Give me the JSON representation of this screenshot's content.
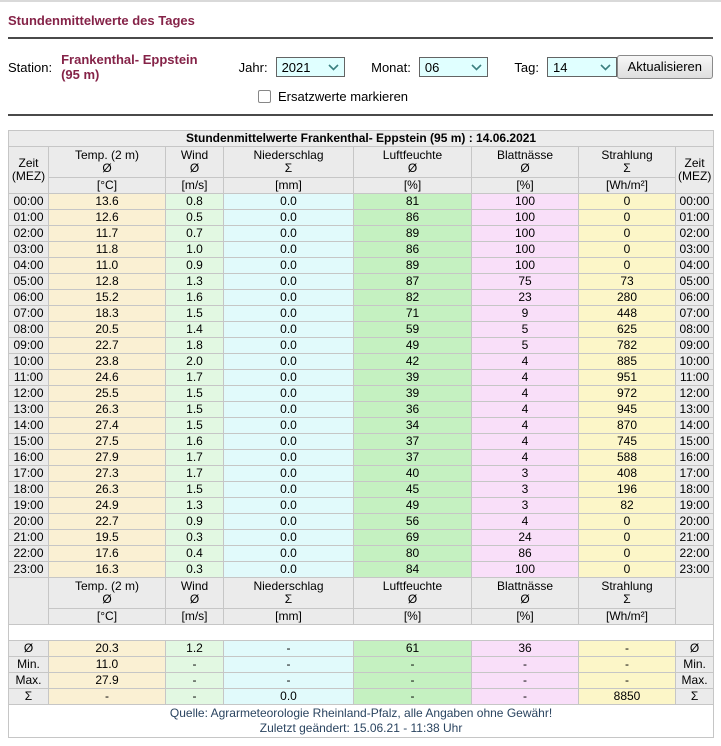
{
  "page": {
    "title": "Stundenmittelwerte des Tages"
  },
  "controls": {
    "station_label": "Station:",
    "station_value": "Frankenthal- Eppstein (95 m)",
    "year_label": "Jahr:",
    "year_value": "2021",
    "month_label": "Monat:",
    "month_value": "06",
    "day_label": "Tag:",
    "day_value": "14",
    "refresh_label": "Aktualisieren",
    "checkbox_label": "Ersatzwerte markieren",
    "checkbox_checked": false
  },
  "table": {
    "caption": "Stundenmittelwerte Frankenthal- Eppstein (95 m) : 14.06.2021",
    "columns": [
      {
        "name": "Zeit",
        "sub": "(MEZ)"
      },
      {
        "name": "Temp. (2 m)",
        "symbol": "Ø",
        "unit": "[°C]"
      },
      {
        "name": "Wind",
        "symbol": "Ø",
        "unit": "[m/s]"
      },
      {
        "name": "Niederschlag",
        "symbol": "Σ",
        "unit": "[mm]"
      },
      {
        "name": "Luftfeuchte",
        "symbol": "Ø",
        "unit": "[%]"
      },
      {
        "name": "Blattnässe",
        "symbol": "Ø",
        "unit": "[%]"
      },
      {
        "name": "Strahlung",
        "symbol": "Σ",
        "unit": "[Wh/m²]"
      },
      {
        "name": "Zeit",
        "sub": "(MEZ)"
      }
    ],
    "rows": [
      [
        "00:00",
        "13.6",
        "0.8",
        "0.0",
        "81",
        "100",
        "0"
      ],
      [
        "01:00",
        "12.6",
        "0.5",
        "0.0",
        "86",
        "100",
        "0"
      ],
      [
        "02:00",
        "11.7",
        "0.7",
        "0.0",
        "89",
        "100",
        "0"
      ],
      [
        "03:00",
        "11.8",
        "1.0",
        "0.0",
        "86",
        "100",
        "0"
      ],
      [
        "04:00",
        "11.0",
        "0.9",
        "0.0",
        "89",
        "100",
        "0"
      ],
      [
        "05:00",
        "12.8",
        "1.3",
        "0.0",
        "87",
        "75",
        "73"
      ],
      [
        "06:00",
        "15.2",
        "1.6",
        "0.0",
        "82",
        "23",
        "280"
      ],
      [
        "07:00",
        "18.3",
        "1.5",
        "0.0",
        "71",
        "9",
        "448"
      ],
      [
        "08:00",
        "20.5",
        "1.4",
        "0.0",
        "59",
        "5",
        "625"
      ],
      [
        "09:00",
        "22.7",
        "1.8",
        "0.0",
        "49",
        "5",
        "782"
      ],
      [
        "10:00",
        "23.8",
        "2.0",
        "0.0",
        "42",
        "4",
        "885"
      ],
      [
        "11:00",
        "24.6",
        "1.7",
        "0.0",
        "39",
        "4",
        "951"
      ],
      [
        "12:00",
        "25.5",
        "1.5",
        "0.0",
        "39",
        "4",
        "972"
      ],
      [
        "13:00",
        "26.3",
        "1.5",
        "0.0",
        "36",
        "4",
        "945"
      ],
      [
        "14:00",
        "27.4",
        "1.5",
        "0.0",
        "34",
        "4",
        "870"
      ],
      [
        "15:00",
        "27.5",
        "1.6",
        "0.0",
        "37",
        "4",
        "745"
      ],
      [
        "16:00",
        "27.9",
        "1.7",
        "0.0",
        "37",
        "4",
        "588"
      ],
      [
        "17:00",
        "27.3",
        "1.7",
        "0.0",
        "40",
        "3",
        "408"
      ],
      [
        "18:00",
        "26.3",
        "1.5",
        "0.0",
        "45",
        "3",
        "196"
      ],
      [
        "19:00",
        "24.9",
        "1.3",
        "0.0",
        "49",
        "3",
        "82"
      ],
      [
        "20:00",
        "22.7",
        "0.9",
        "0.0",
        "56",
        "4",
        "0"
      ],
      [
        "21:00",
        "19.5",
        "0.3",
        "0.0",
        "69",
        "24",
        "0"
      ],
      [
        "22:00",
        "17.6",
        "0.4",
        "0.0",
        "80",
        "86",
        "0"
      ],
      [
        "23:00",
        "16.3",
        "0.3",
        "0.0",
        "84",
        "100",
        "0"
      ]
    ],
    "summary": [
      {
        "label": "Ø",
        "values": [
          "20.3",
          "1.2",
          "-",
          "61",
          "36",
          "-"
        ]
      },
      {
        "label": "Min.",
        "values": [
          "11.0",
          "-",
          "-",
          "-",
          "-",
          "-"
        ]
      },
      {
        "label": "Max.",
        "values": [
          "27.9",
          "-",
          "-",
          "-",
          "-",
          "-"
        ]
      },
      {
        "label": "Σ",
        "values": [
          "-",
          "-",
          "0.0",
          "-",
          "-",
          "8850"
        ]
      }
    ],
    "footer": {
      "source": "Quelle: Agrarmeteorologie Rheinland-Pfalz, alle Angaben ohne Gewähr!",
      "last_modified": "Zuletzt geändert: 15.06.21 - 11:38 Uhr"
    }
  },
  "icons": {
    "chevron_down": "chevron-down-icon"
  },
  "colors": {
    "accent": "#852348",
    "select_bg": "#E0FFFF",
    "footer_text": "#2A4460",
    "col_temp": "#FAF0D3",
    "col_wind": "#E2F8E2",
    "col_precip": "#E1FAFB",
    "col_humid": "#C5F1C1",
    "col_leaf": "#F9DFF9",
    "col_rad": "#FCF6C8",
    "head_bg": "#EBEBEB"
  }
}
